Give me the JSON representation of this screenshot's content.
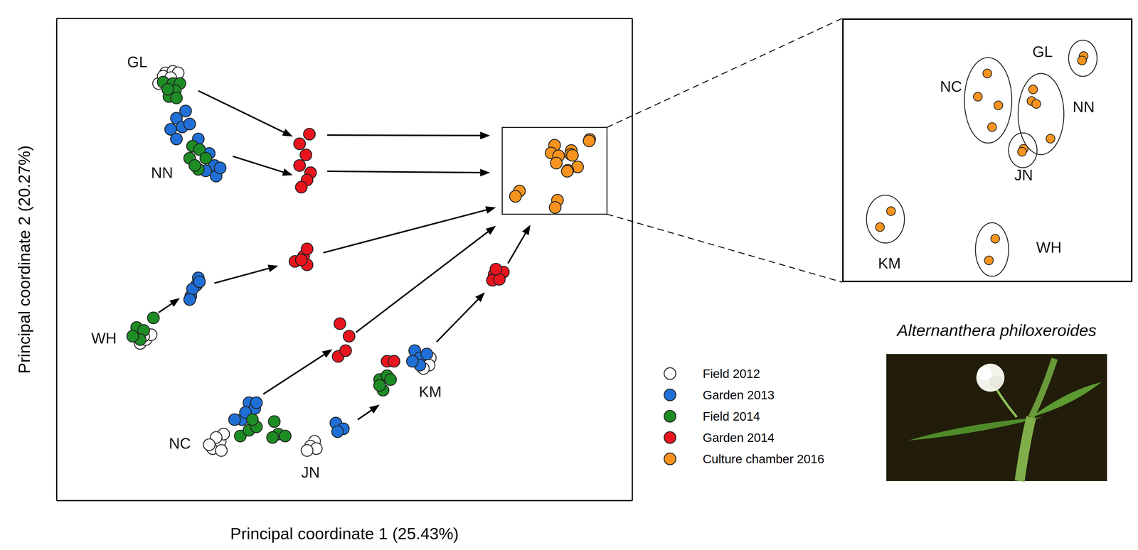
{
  "chart_data": [
    {
      "type": "scatter",
      "x_label": "Principal coordinate 1 (25.43%)",
      "y_label": "Principal coordinate 2 (20.27%)",
      "xlim": [
        0,
        100
      ],
      "ylim": [
        0,
        100
      ],
      "xticks": [],
      "yticks": [],
      "tick_labels": false,
      "grid": false,
      "legend": "right",
      "series": [
        {
          "name": "Field 2012",
          "color": "#ffffff",
          "x": [
            17.7,
            18.9,
            20.2,
            21.1,
            18.5,
            19.8,
            14.5,
            15.5,
            16.4,
            15.1,
            27.1,
            28.4,
            29.0,
            27.7,
            28.6,
            26.5,
            44.8,
            44.1,
            45.1,
            43.5,
            64.9,
            64.7,
            63.7
          ],
          "y": [
            86.5,
            88.7,
            89.0,
            88.7,
            88.0,
            87.7,
            32.6,
            33.4,
            34.4,
            34.1,
            10.8,
            12.3,
            13.8,
            13.1,
            10.4,
            11.6,
            12.3,
            11.3,
            10.8,
            10.4,
            29.6,
            28.1,
            27.4
          ]
        },
        {
          "name": "Garden 2013",
          "color": "#1f6fd6",
          "x": [
            22.4,
            20.8,
            19.8,
            21.8,
            20.8,
            23.1,
            24.6,
            26.5,
            27.4,
            25.9,
            27.7,
            28.4,
            23.3,
            24.3,
            24.6,
            23.6,
            23.1,
            24.8,
            33.4,
            34.4,
            32.2,
            30.9,
            32.8,
            34.7,
            48.5,
            49.8,
            48.8,
            62.2,
            63.1,
            64.3,
            63.1,
            61.8
          ],
          "y": [
            80.8,
            79.3,
            77.0,
            77.5,
            75.0,
            78.1,
            75.0,
            72.0,
            69.5,
            68.4,
            67.3,
            69.0,
            42.4,
            44.7,
            46.2,
            43.9,
            41.7,
            45.4,
            20.3,
            19.1,
            16.8,
            16.8,
            18.3,
            20.3,
            16.1,
            14.9,
            14.3,
            31.1,
            29.6,
            30.4,
            28.1,
            28.9
          ]
        },
        {
          "name": "Field 2014",
          "color": "#1e8c24",
          "x": [
            18.5,
            20.2,
            21.4,
            20.6,
            19.5,
            20.8,
            19.3,
            23.6,
            24.8,
            23.1,
            24.6,
            25.9,
            24.0,
            13.9,
            15.1,
            16.8,
            14.5,
            13.2,
            31.9,
            33.4,
            34.7,
            34.0,
            37.8,
            38.5,
            39.7,
            37.5,
            56.1,
            57.4,
            56.7,
            56.1,
            58.0
          ],
          "y": [
            86.8,
            86.5,
            86.5,
            85.0,
            83.8,
            83.5,
            85.3,
            73.5,
            72.8,
            71.0,
            68.7,
            71.0,
            69.5,
            35.9,
            35.3,
            37.9,
            33.4,
            34.1,
            13.4,
            14.6,
            15.3,
            16.8,
            16.4,
            13.8,
            13.4,
            13.1,
            25.1,
            25.9,
            22.9,
            23.9,
            25.1
          ]
        },
        {
          "name": "Garden 2014",
          "color": "#e8141e",
          "x": [
            43.9,
            42.2,
            43.3,
            42.2,
            44.1,
            43.5,
            42.5,
            41.4,
            42.9,
            43.5,
            43.5,
            42.5,
            49.2,
            50.8,
            48.9,
            50.2,
            57.4,
            58.6,
            76.0,
            77.6,
            75.7,
            76.9,
            76.3
          ],
          "y": [
            76.0,
            74.0,
            71.7,
            69.5,
            68.0,
            66.5,
            65.0,
            49.6,
            50.7,
            52.2,
            48.9,
            49.9,
            36.7,
            34.1,
            29.9,
            31.1,
            28.9,
            28.9,
            46.9,
            47.4,
            45.7,
            45.9,
            48.0
          ]
        },
        {
          "name": "Culture chamber 2016",
          "color": "#f7931e",
          "x": [
            92.6,
            92.5,
            86.5,
            85.9,
            87.2,
            86.8,
            89.4,
            89.3,
            89.6,
            90.5,
            88.8,
            88.7,
            80.4,
            79.7,
            87.0,
            86.6
          ],
          "y": [
            74.9,
            74.6,
            73.7,
            72.1,
            71.5,
            70.0,
            72.6,
            71.8,
            71.6,
            69.2,
            68.5,
            68.3,
            64.2,
            63.1,
            62.3,
            60.8
          ],
          "population": [
            "GL",
            "GL",
            "NC",
            "NC",
            "NC",
            "NC",
            "NN",
            "NN",
            "NN",
            "NN",
            "JN",
            "JN",
            "KM",
            "KM",
            "WH",
            "WH"
          ]
        }
      ],
      "annotations": [
        {
          "text": "GL",
          "x": 14.0,
          "y": 91.0
        },
        {
          "text": "NN",
          "x": 18.3,
          "y": 68.0
        },
        {
          "text": "WH",
          "x": 8.2,
          "y": 33.7
        },
        {
          "text": "NC",
          "x": 21.4,
          "y": 11.9
        },
        {
          "text": "JN",
          "x": 44.1,
          "y": 5.9
        },
        {
          "text": "KM",
          "x": 64.9,
          "y": 22.6
        }
      ],
      "arrows": [
        {
          "from": [
            24.6,
            85.0
          ],
          "to": [
            41.0,
            75.5
          ]
        },
        {
          "from": [
            30.6,
            71.4
          ],
          "to": [
            41.0,
            67.5
          ]
        },
        {
          "from": [
            47.0,
            75.8
          ],
          "to": [
            75.3,
            75.7
          ]
        },
        {
          "from": [
            47.0,
            68.3
          ],
          "to": [
            75.3,
            68.0
          ]
        },
        {
          "from": [
            17.7,
            39.0
          ],
          "to": [
            21.4,
            42.0
          ]
        },
        {
          "from": [
            27.4,
            45.1
          ],
          "to": [
            38.5,
            48.7
          ]
        },
        {
          "from": [
            46.3,
            51.4
          ],
          "to": [
            76.3,
            60.8
          ]
        },
        {
          "from": [
            35.9,
            22.1
          ],
          "to": [
            47.9,
            31.4
          ]
        },
        {
          "from": [
            52.0,
            34.9
          ],
          "to": [
            76.3,
            57.0
          ]
        },
        {
          "from": [
            52.3,
            16.8
          ],
          "to": [
            56.1,
            19.9
          ]
        },
        {
          "from": [
            66.0,
            32.9
          ],
          "to": [
            74.4,
            43.2
          ]
        },
        {
          "from": [
            78.4,
            49.2
          ],
          "to": [
            82.3,
            57.2
          ]
        }
      ]
    },
    {
      "type": "scatter",
      "series": [
        "Culture chamber 2016"
      ],
      "xlim": [
        77.4,
        95.6
      ],
      "ylim": [
        59.4,
        77.4
      ],
      "tick_labels": false,
      "annotations": [
        {
          "text": "GL",
          "x": 90.0,
          "y": 75.2
        },
        {
          "text": "NC",
          "x": 84.2,
          "y": 72.8
        },
        {
          "text": "NN",
          "x": 92.6,
          "y": 71.4
        },
        {
          "text": "JN",
          "x": 88.8,
          "y": 66.7
        },
        {
          "text": "KM",
          "x": 80.3,
          "y": 60.6
        },
        {
          "text": "WH",
          "x": 90.4,
          "y": 61.7
        }
      ]
    }
  ],
  "image": {
    "caption": "Alternanthera philoxeroides"
  }
}
